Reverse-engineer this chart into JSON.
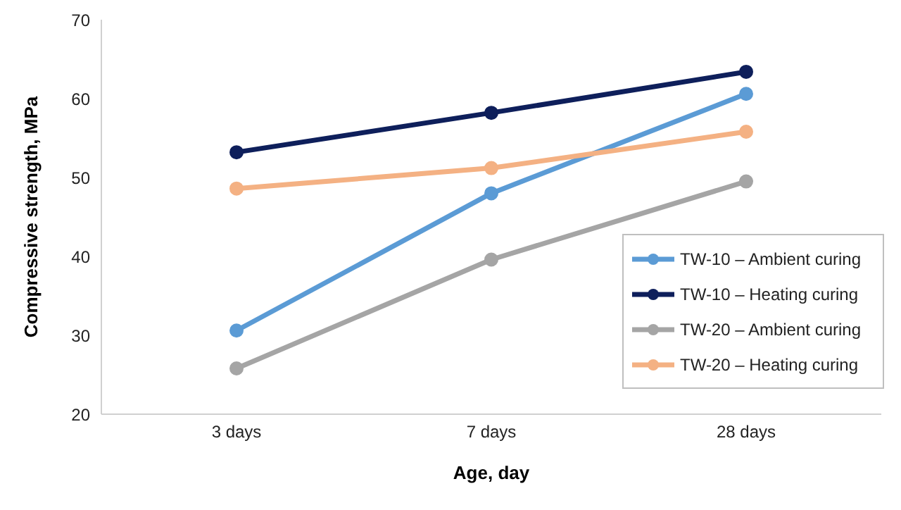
{
  "chart_data": {
    "type": "line",
    "xlabel": "Age, day",
    "ylabel": "Compressive strength, MPa",
    "categories": [
      "3 days",
      "7 days",
      "28 days"
    ],
    "series": [
      {
        "name": "TW-10 – Ambient curing",
        "color": "#5b9bd5",
        "values": [
          30.6,
          48.0,
          60.6
        ]
      },
      {
        "name": "TW-10 – Heating curing",
        "color": "#0e1f5b",
        "values": [
          53.2,
          58.2,
          63.4
        ]
      },
      {
        "name": "TW-20 – Ambient curing",
        "color": "#a5a5a5",
        "values": [
          25.8,
          39.6,
          49.5
        ]
      },
      {
        "name": "TW-20 – Heating curing",
        "color": "#f4b183",
        "values": [
          48.6,
          51.2,
          55.8
        ]
      }
    ],
    "ylim": [
      20,
      70
    ],
    "yticks": [
      20,
      30,
      40,
      50,
      60,
      70
    ],
    "grid": false,
    "legend": "right",
    "marker": "circle",
    "line_style": "solid"
  }
}
